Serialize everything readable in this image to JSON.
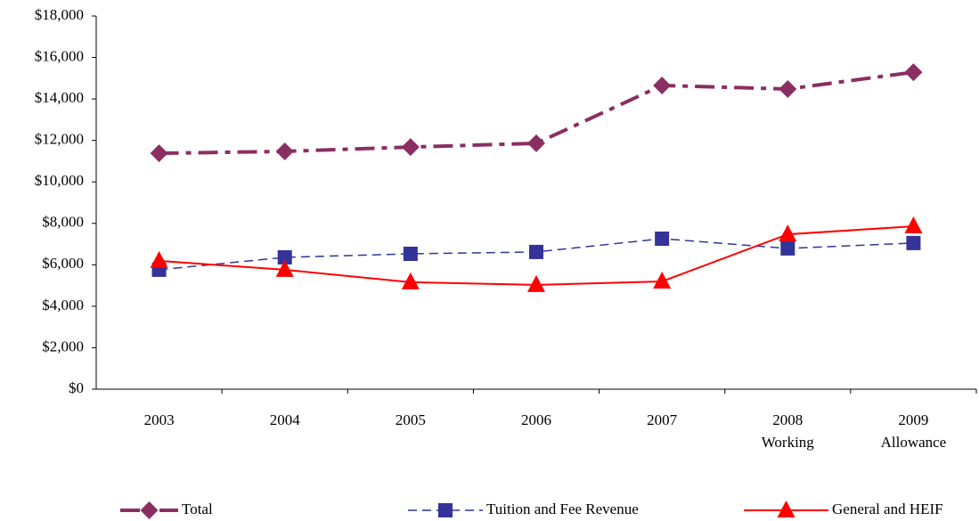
{
  "chart_data": {
    "type": "line",
    "categories": [
      "2003",
      "2004",
      "2005",
      "2006",
      "2007",
      "2008\nWorking",
      "2009\nAllowance"
    ],
    "series": [
      {
        "name": "Total",
        "color": "#8b2e62",
        "dash": "dashdot",
        "marker": "diamond",
        "values": [
          11380,
          11470,
          11680,
          11860,
          14650,
          14480,
          15290
        ]
      },
      {
        "name": "Tuition and Fee Revenue",
        "color": "#333399",
        "dash": "dashed",
        "marker": "square",
        "values": [
          5760,
          6360,
          6530,
          6620,
          7260,
          6790,
          7050
        ]
      },
      {
        "name": "General and HEIF",
        "color": "#ff0000",
        "dash": "solid",
        "marker": "triangle",
        "values": [
          6190,
          5760,
          5160,
          5030,
          5200,
          7470,
          7860
        ]
      }
    ],
    "ylim": [
      0,
      18000
    ],
    "yticks": [
      {
        "value": 0,
        "label": "$0"
      },
      {
        "value": 2000,
        "label": "$2,000"
      },
      {
        "value": 4000,
        "label": "$4,000"
      },
      {
        "value": 6000,
        "label": "$6,000"
      },
      {
        "value": 8000,
        "label": "$8,000"
      },
      {
        "value": 10000,
        "label": "$10,000"
      },
      {
        "value": 12000,
        "label": "$12,000"
      },
      {
        "value": 14000,
        "label": "$14,000"
      },
      {
        "value": 16000,
        "label": "$16,000"
      },
      {
        "value": 18000,
        "label": "$18,000"
      }
    ],
    "grid": false,
    "legend": "bottom"
  }
}
